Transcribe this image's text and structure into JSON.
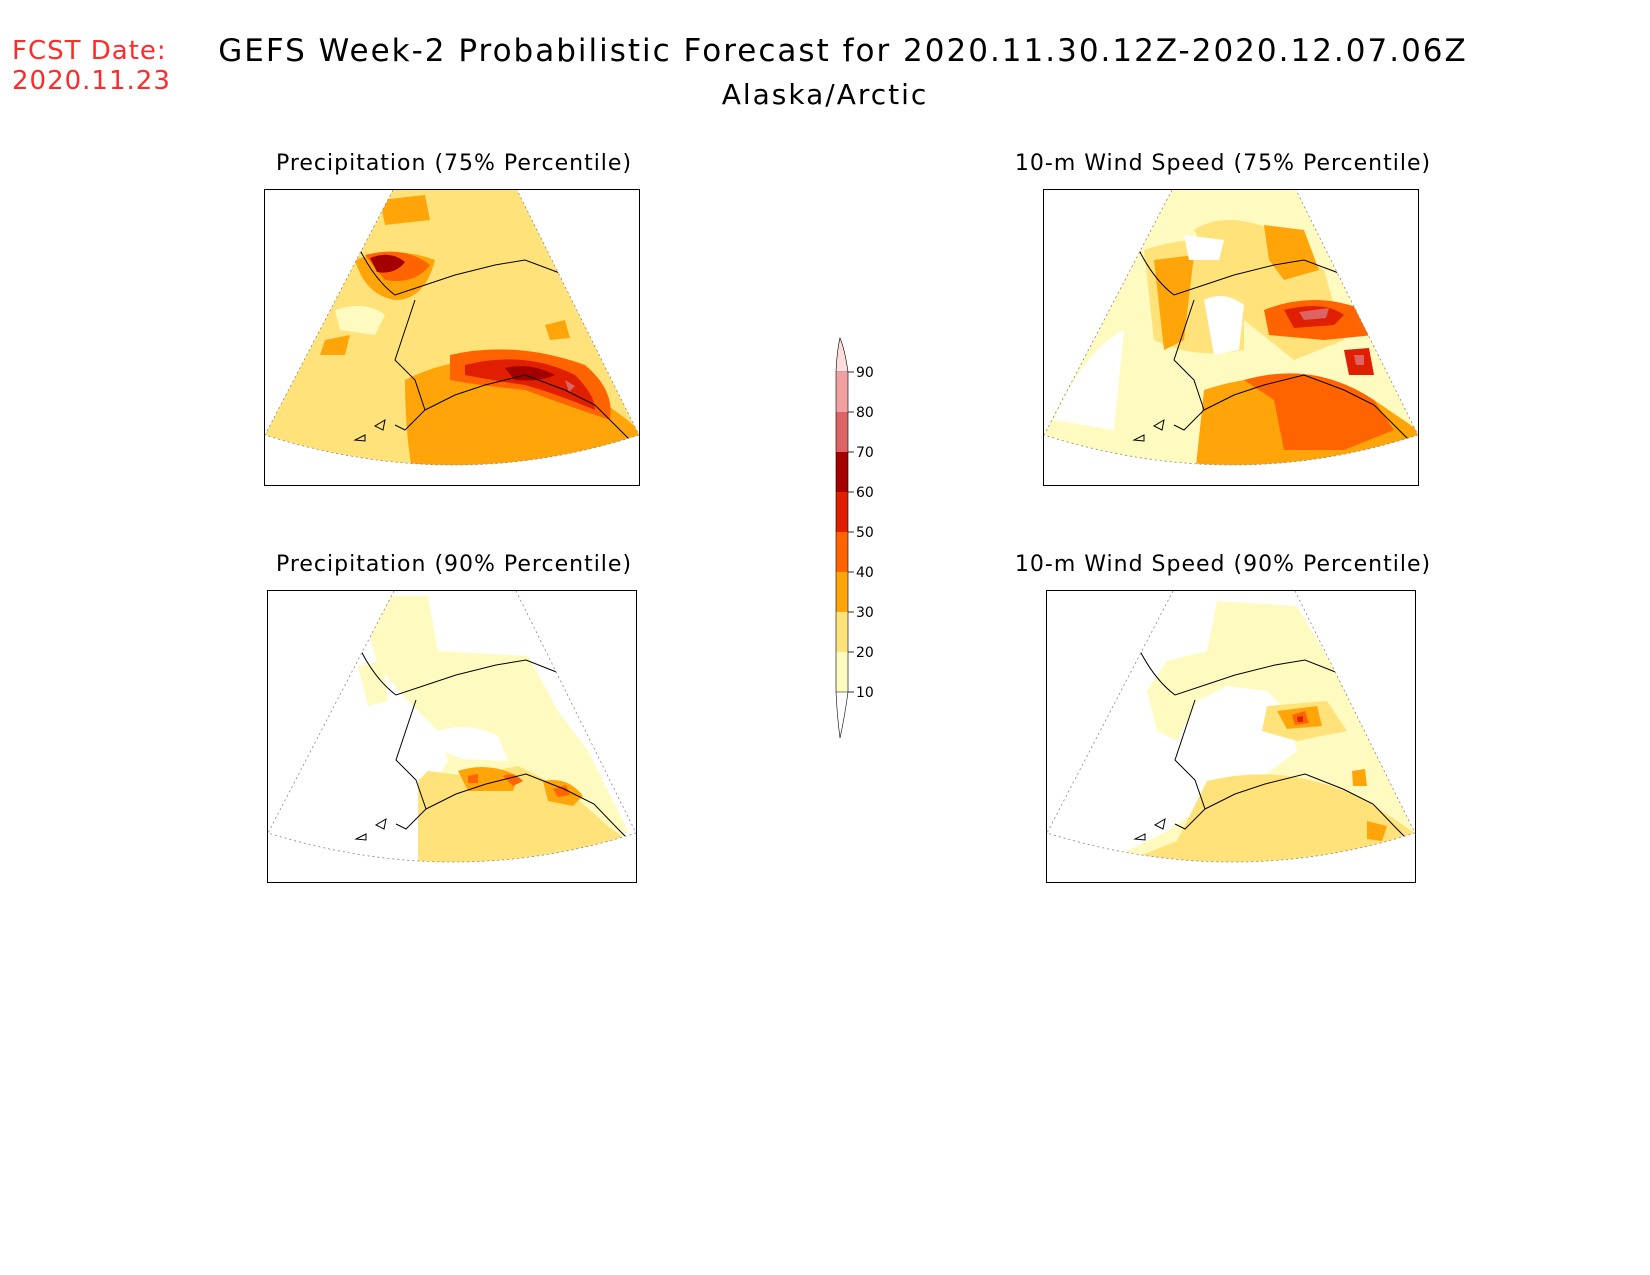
{
  "header": {
    "fcst_label": "FCST Date:",
    "fcst_date": "2020.11.23",
    "title": "GEFS Week-2 Probabilistic Forecast for 2020.11.30.12Z-2020.12.07.06Z",
    "region": "Alaska/Arctic"
  },
  "panels": [
    {
      "title": "Precipitation (75% Percentile)"
    },
    {
      "title": "10-m Wind Speed (75% Percentile)"
    },
    {
      "title": "Precipitation (90% Percentile)"
    },
    {
      "title": "10-m Wind Speed (90% Percentile)"
    }
  ],
  "colorbar": {
    "levels": [
      "10",
      "20",
      "30",
      "40",
      "50",
      "60",
      "70",
      "80",
      "90"
    ],
    "colors": {
      "below_10": "#ffffff",
      "10-20": "#fffac0",
      "20-30": "#ffe27a",
      "30-40": "#ffa50a",
      "40-50": "#ff6400",
      "50-60": "#e01e00",
      "60-70": "#a50000",
      "70-80": "#dc6464",
      "80-90": "#f0a0a0",
      "above_90": "#ffdcdc"
    }
  }
}
